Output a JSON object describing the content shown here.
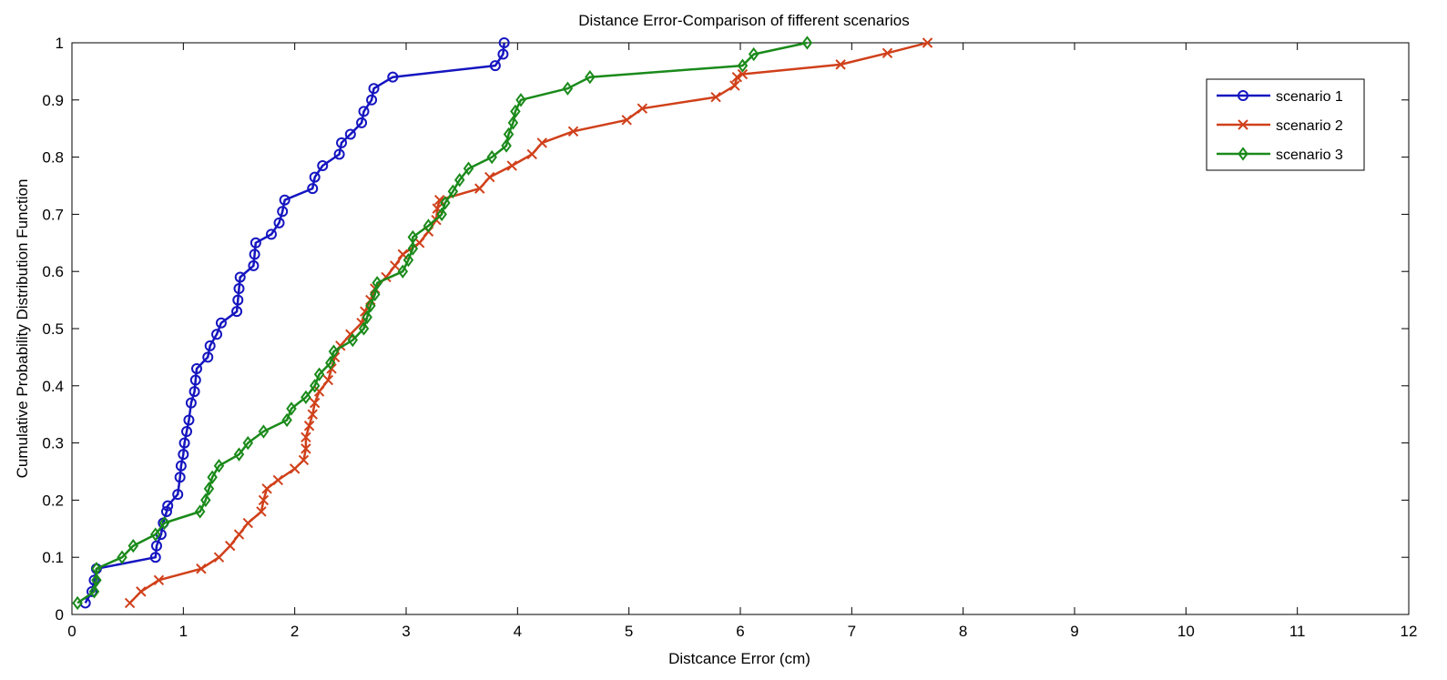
{
  "chart_data": {
    "type": "line",
    "title": "Distance Error-Comparison of fifferent scenarios",
    "xlabel": "Distcance Error (cm)",
    "ylabel": "Cumulative Probability Distribution Function",
    "xlim": [
      0,
      12
    ],
    "ylim": [
      0,
      1
    ],
    "x_ticks": [
      "0",
      "1",
      "2",
      "3",
      "4",
      "5",
      "6",
      "7",
      "8",
      "9",
      "10",
      "11",
      "12"
    ],
    "y_ticks": [
      "0",
      "0.1",
      "0.2",
      "0.3",
      "0.4",
      "0.5",
      "0.6",
      "0.7",
      "0.8",
      "0.9",
      "1"
    ],
    "grid": false,
    "legend_position": "top-right",
    "series": [
      {
        "name": "scenario 1",
        "color": "#1515c0",
        "marker": "circle",
        "points": [
          [
            0.12,
            0.02
          ],
          [
            0.18,
            0.04
          ],
          [
            0.2,
            0.06
          ],
          [
            0.22,
            0.08
          ],
          [
            0.75,
            0.1
          ],
          [
            0.76,
            0.12
          ],
          [
            0.8,
            0.14
          ],
          [
            0.82,
            0.16
          ],
          [
            0.85,
            0.18
          ],
          [
            0.86,
            0.19
          ],
          [
            0.95,
            0.21
          ],
          [
            0.97,
            0.24
          ],
          [
            0.98,
            0.26
          ],
          [
            1.0,
            0.28
          ],
          [
            1.01,
            0.3
          ],
          [
            1.03,
            0.32
          ],
          [
            1.05,
            0.34
          ],
          [
            1.07,
            0.37
          ],
          [
            1.1,
            0.39
          ],
          [
            1.11,
            0.41
          ],
          [
            1.12,
            0.43
          ],
          [
            1.22,
            0.45
          ],
          [
            1.24,
            0.47
          ],
          [
            1.3,
            0.49
          ],
          [
            1.34,
            0.51
          ],
          [
            1.48,
            0.53
          ],
          [
            1.49,
            0.55
          ],
          [
            1.5,
            0.57
          ],
          [
            1.51,
            0.59
          ],
          [
            1.63,
            0.61
          ],
          [
            1.64,
            0.63
          ],
          [
            1.65,
            0.65
          ],
          [
            1.79,
            0.665
          ],
          [
            1.86,
            0.685
          ],
          [
            1.89,
            0.705
          ],
          [
            1.91,
            0.725
          ],
          [
            2.16,
            0.745
          ],
          [
            2.18,
            0.765
          ],
          [
            2.25,
            0.785
          ],
          [
            2.4,
            0.805
          ],
          [
            2.42,
            0.825
          ],
          [
            2.5,
            0.84
          ],
          [
            2.6,
            0.86
          ],
          [
            2.62,
            0.88
          ],
          [
            2.69,
            0.9
          ],
          [
            2.71,
            0.92
          ],
          [
            2.88,
            0.94
          ],
          [
            3.8,
            0.96
          ],
          [
            3.87,
            0.98
          ],
          [
            3.88,
            1.0
          ]
        ]
      },
      {
        "name": "scenario 2",
        "color": "#d0401a",
        "marker": "x",
        "points": [
          [
            0.52,
            0.02
          ],
          [
            0.62,
            0.04
          ],
          [
            0.78,
            0.06
          ],
          [
            1.16,
            0.08
          ],
          [
            1.32,
            0.1
          ],
          [
            1.42,
            0.12
          ],
          [
            1.5,
            0.14
          ],
          [
            1.58,
            0.16
          ],
          [
            1.7,
            0.18
          ],
          [
            1.72,
            0.2
          ],
          [
            1.75,
            0.22
          ],
          [
            1.85,
            0.235
          ],
          [
            2.0,
            0.255
          ],
          [
            2.08,
            0.27
          ],
          [
            2.1,
            0.29
          ],
          [
            2.1,
            0.31
          ],
          [
            2.13,
            0.33
          ],
          [
            2.16,
            0.35
          ],
          [
            2.18,
            0.37
          ],
          [
            2.22,
            0.39
          ],
          [
            2.3,
            0.41
          ],
          [
            2.33,
            0.43
          ],
          [
            2.36,
            0.45
          ],
          [
            2.41,
            0.47
          ],
          [
            2.5,
            0.49
          ],
          [
            2.6,
            0.51
          ],
          [
            2.63,
            0.53
          ],
          [
            2.68,
            0.55
          ],
          [
            2.72,
            0.57
          ],
          [
            2.82,
            0.59
          ],
          [
            2.9,
            0.61
          ],
          [
            2.97,
            0.63
          ],
          [
            3.12,
            0.65
          ],
          [
            3.2,
            0.67
          ],
          [
            3.27,
            0.69
          ],
          [
            3.28,
            0.71
          ],
          [
            3.3,
            0.725
          ],
          [
            3.66,
            0.745
          ],
          [
            3.75,
            0.765
          ],
          [
            3.95,
            0.785
          ],
          [
            4.13,
            0.805
          ],
          [
            4.22,
            0.825
          ],
          [
            4.5,
            0.845
          ],
          [
            4.98,
            0.865
          ],
          [
            5.12,
            0.885
          ],
          [
            5.78,
            0.905
          ],
          [
            5.95,
            0.925
          ],
          [
            5.97,
            0.94
          ],
          [
            6.02,
            0.945
          ],
          [
            6.9,
            0.962
          ],
          [
            7.32,
            0.982
          ],
          [
            7.68,
            1.0
          ]
        ]
      },
      {
        "name": "scenario 3",
        "color": "#1a8a1a",
        "marker": "diamond",
        "points": [
          [
            0.05,
            0.02
          ],
          [
            0.2,
            0.04
          ],
          [
            0.22,
            0.06
          ],
          [
            0.22,
            0.08
          ],
          [
            0.45,
            0.1
          ],
          [
            0.55,
            0.12
          ],
          [
            0.75,
            0.14
          ],
          [
            0.83,
            0.16
          ],
          [
            1.15,
            0.18
          ],
          [
            1.2,
            0.2
          ],
          [
            1.23,
            0.22
          ],
          [
            1.26,
            0.24
          ],
          [
            1.32,
            0.26
          ],
          [
            1.5,
            0.28
          ],
          [
            1.58,
            0.3
          ],
          [
            1.72,
            0.32
          ],
          [
            1.93,
            0.34
          ],
          [
            1.97,
            0.36
          ],
          [
            2.1,
            0.38
          ],
          [
            2.18,
            0.4
          ],
          [
            2.22,
            0.42
          ],
          [
            2.32,
            0.44
          ],
          [
            2.35,
            0.46
          ],
          [
            2.52,
            0.48
          ],
          [
            2.62,
            0.5
          ],
          [
            2.65,
            0.52
          ],
          [
            2.68,
            0.54
          ],
          [
            2.72,
            0.56
          ],
          [
            2.74,
            0.58
          ],
          [
            2.97,
            0.6
          ],
          [
            3.02,
            0.62
          ],
          [
            3.06,
            0.64
          ],
          [
            3.06,
            0.66
          ],
          [
            3.2,
            0.68
          ],
          [
            3.32,
            0.7
          ],
          [
            3.35,
            0.72
          ],
          [
            3.42,
            0.74
          ],
          [
            3.48,
            0.76
          ],
          [
            3.56,
            0.78
          ],
          [
            3.77,
            0.8
          ],
          [
            3.9,
            0.82
          ],
          [
            3.92,
            0.84
          ],
          [
            3.96,
            0.86
          ],
          [
            3.98,
            0.88
          ],
          [
            4.03,
            0.9
          ],
          [
            4.45,
            0.92
          ],
          [
            4.65,
            0.94
          ],
          [
            6.02,
            0.96
          ],
          [
            6.12,
            0.98
          ],
          [
            6.6,
            1.0
          ]
        ]
      }
    ]
  }
}
